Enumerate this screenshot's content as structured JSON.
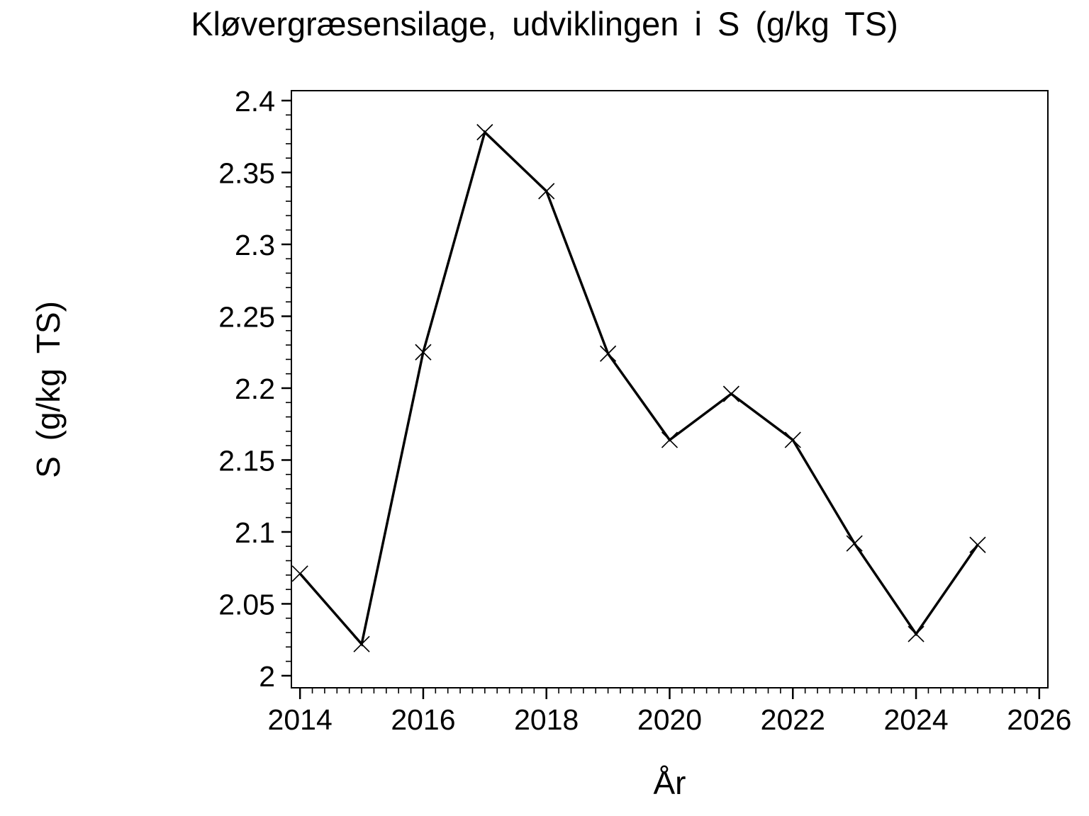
{
  "chart_data": {
    "type": "line",
    "title": "Kløvergræsensilage, udviklingen i S (g/kg TS)",
    "xlabel": "År",
    "ylabel": "S (g/kg TS)",
    "x": [
      2014,
      2015,
      2016,
      2017,
      2018,
      2019,
      2020,
      2021,
      2022,
      2023,
      2024,
      2025
    ],
    "values": [
      2.071,
      2.022,
      2.225,
      2.378,
      2.337,
      2.224,
      2.164,
      2.196,
      2.164,
      2.092,
      2.029,
      2.091
    ],
    "x_range": [
      2013.86,
      2026.14
    ],
    "y_range": [
      1.9916,
      2.4069
    ],
    "x_major_ticks": [
      2014,
      2016,
      2018,
      2020,
      2022,
      2024,
      2026
    ],
    "x_major_tick_labels": [
      "2014",
      "2016",
      "2018",
      "2020",
      "2022",
      "2024",
      "2026"
    ],
    "x_minor_step": 0.2,
    "y_major_ticks": [
      2.0,
      2.05,
      2.1,
      2.15,
      2.2,
      2.25,
      2.3,
      2.35,
      2.4
    ],
    "y_major_tick_labels": [
      "2",
      "2.05",
      "2.1",
      "2.15",
      "2.2",
      "2.25",
      "2.3",
      "2.35",
      "2.4"
    ],
    "y_minor_step": 0.01,
    "marker": "x-cross",
    "line_color": "#000000",
    "background_color": "#ffffff",
    "grid": "off",
    "legend": "none"
  }
}
